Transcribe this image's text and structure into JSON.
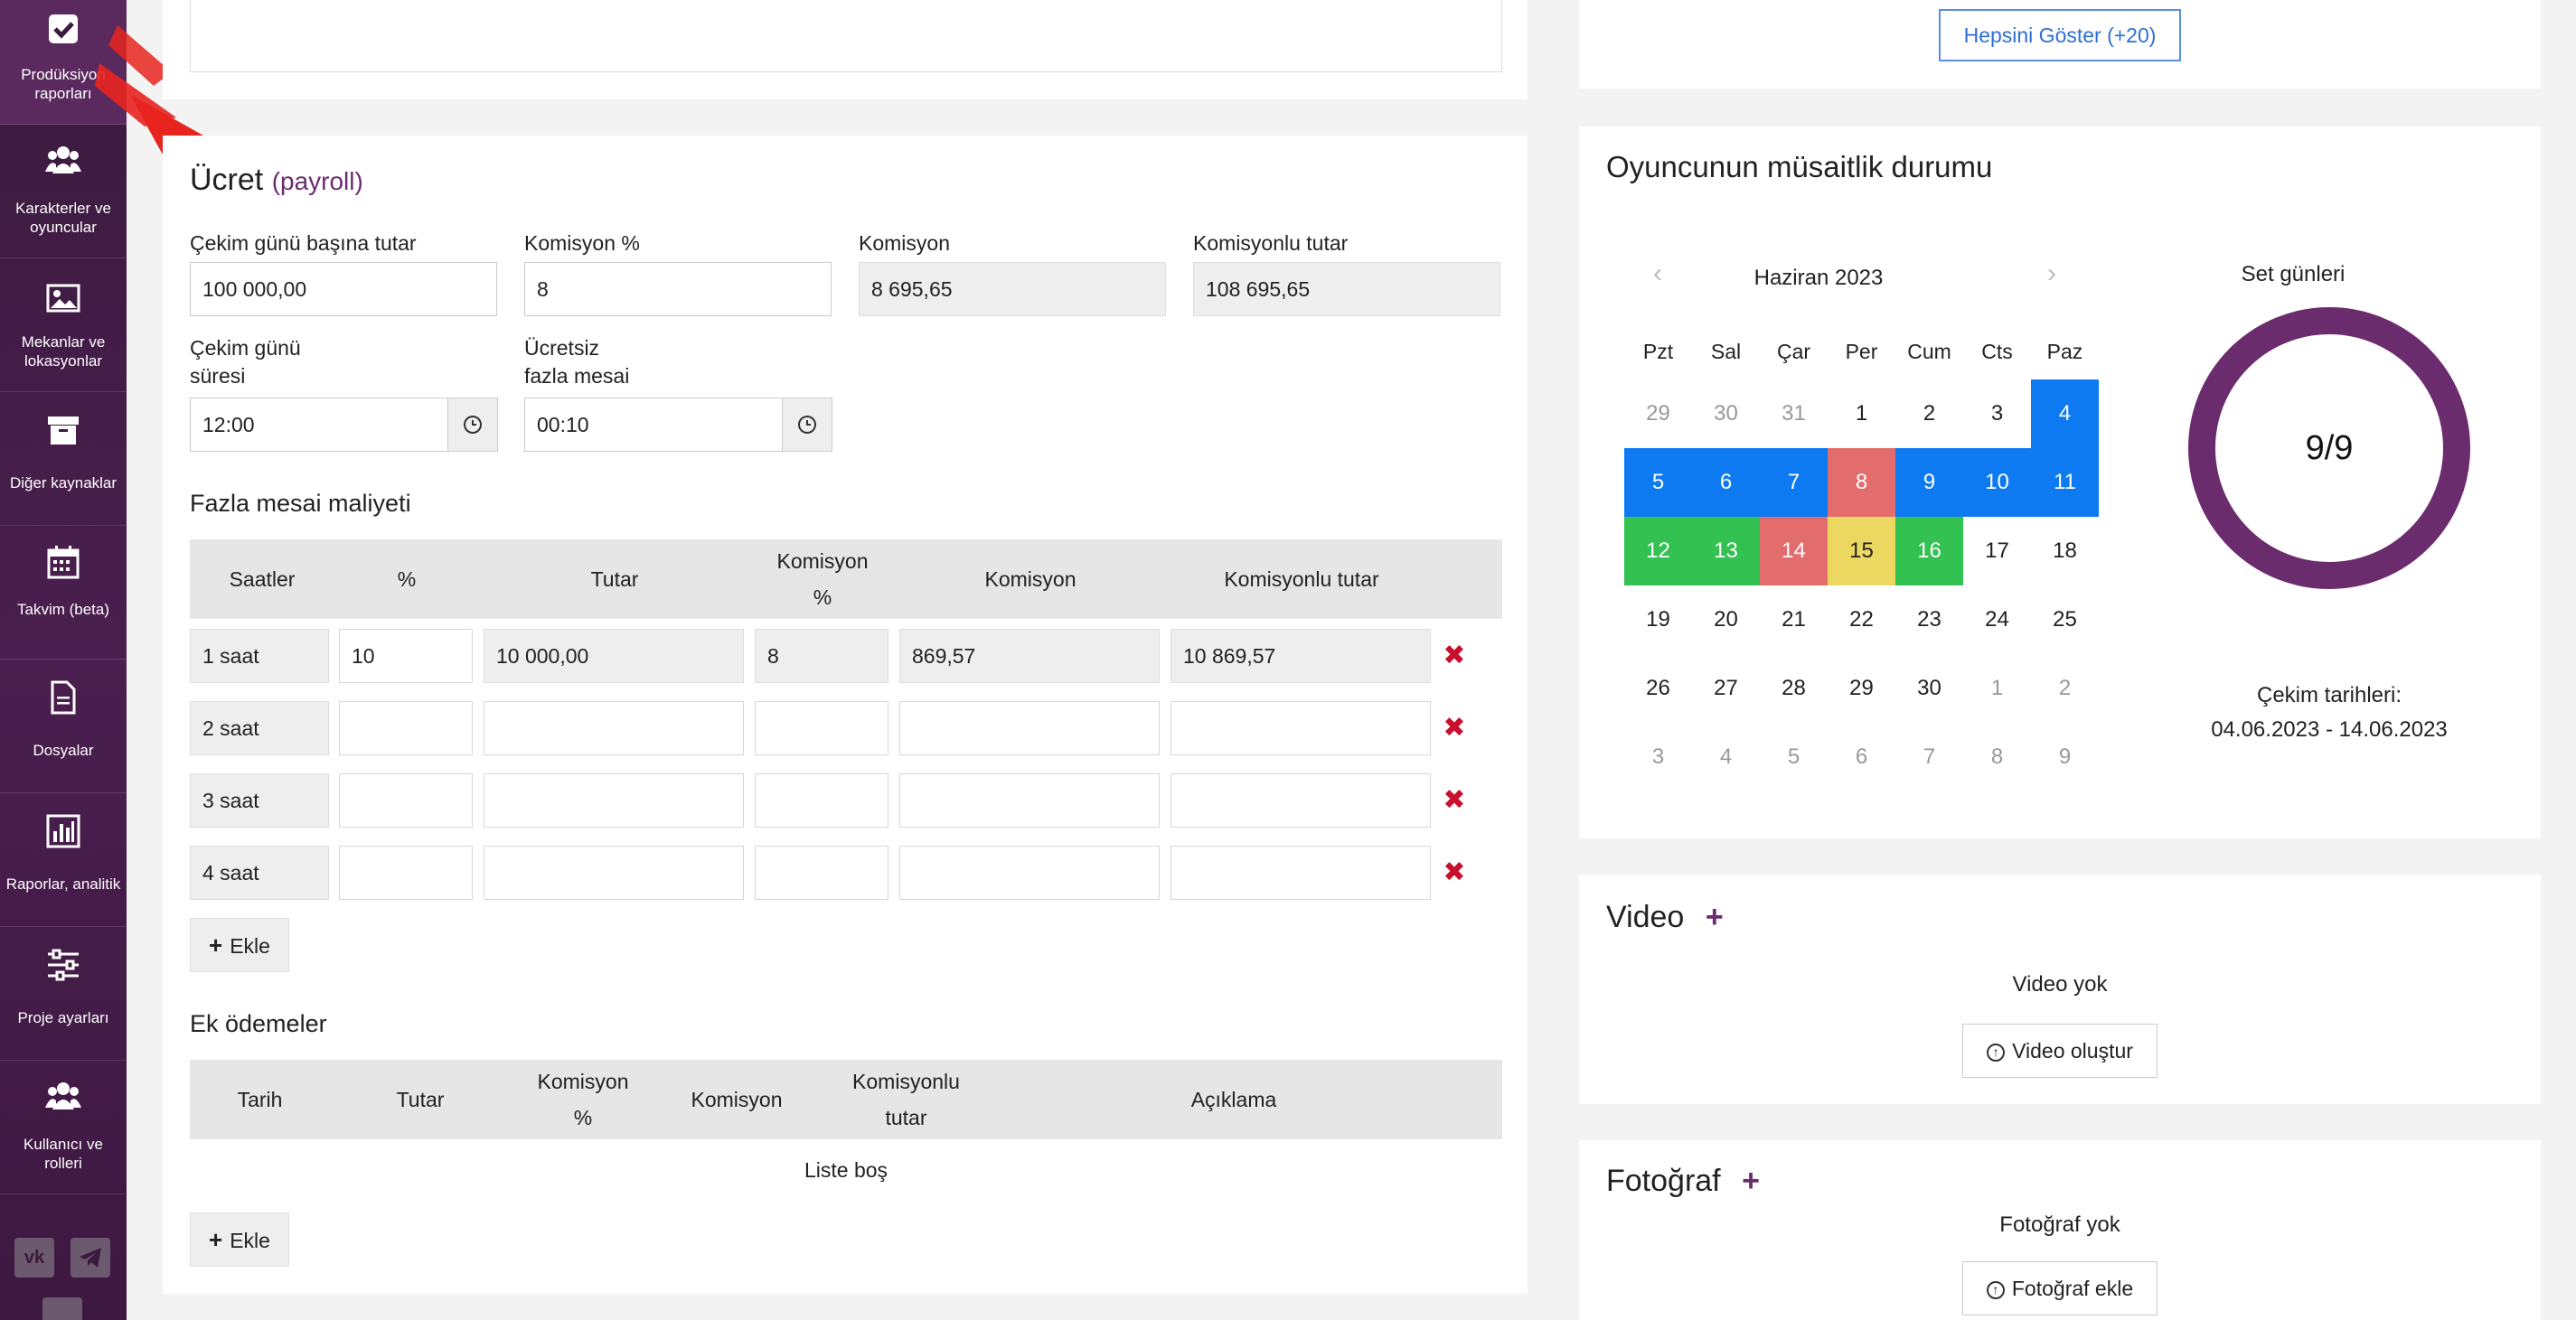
{
  "colors": {
    "sidebar": "#3a1a3d",
    "accent_purple": "#6b2c6e",
    "blue": "#0d7af2",
    "green": "#33c151",
    "red": "#e36d6d",
    "yellow": "#ecd861",
    "delete_red": "#c8102e"
  },
  "sidebar": {
    "items": [
      {
        "label": "Prodüksiyon raporları",
        "icon": "checkbox-icon"
      },
      {
        "label": "Karakterler ve oyuncular",
        "icon": "users-icon"
      },
      {
        "label": "Mekanlar ve lokasyonlar",
        "icon": "image-icon"
      },
      {
        "label": "Diğer kaynaklar",
        "icon": "archive-icon"
      },
      {
        "label": "Takvim (beta)",
        "icon": "calendar-icon"
      },
      {
        "label": "Dosyalar",
        "icon": "document-icon"
      },
      {
        "label": "Raporlar, analitik",
        "icon": "chart-icon"
      },
      {
        "label": "Proje ayarları",
        "icon": "sliders-icon"
      },
      {
        "label": "Kullanıcı ve rolleri",
        "icon": "users-icon"
      }
    ],
    "social": [
      "vk-icon",
      "telegram-icon",
      "youtube-icon"
    ]
  },
  "payroll": {
    "title": "Ücret",
    "title_sub": "(payroll)",
    "fields": {
      "day_rate_label": "Çekim günü başına tutar",
      "day_rate_value": "100 000,00",
      "commission_pct_label": "Komisyon %",
      "commission_pct_value": "8",
      "commission_label": "Komisyon",
      "commission_value": "8 695,65",
      "total_label": "Komisyonlu tutar",
      "total_value": "108 695,65",
      "duration_label_1": "Çekim günü",
      "duration_label_2": "süresi",
      "duration_value": "12:00",
      "free_ot_label_1": "Ücretsiz",
      "free_ot_label_2": "fazla mesai",
      "free_ot_value": "00:10"
    },
    "overtime": {
      "title": "Fazla mesai maliyeti",
      "headers": {
        "hours": "Saatler",
        "pct": "%",
        "amount": "Tutar",
        "comm_pct_1": "Komisyon",
        "comm_pct_2": "%",
        "commission": "Komisyon",
        "total": "Komisyonlu tutar"
      },
      "rows": [
        {
          "hours": "1 saat",
          "pct": "10",
          "amount": "10 000,00",
          "comm_pct": "8",
          "commission": "869,57",
          "total": "10 869,57"
        },
        {
          "hours": "2 saat",
          "pct": "",
          "amount": "",
          "comm_pct": "",
          "commission": "",
          "total": ""
        },
        {
          "hours": "3 saat",
          "pct": "",
          "amount": "",
          "comm_pct": "",
          "commission": "",
          "total": ""
        },
        {
          "hours": "4 saat",
          "pct": "",
          "amount": "",
          "comm_pct": "",
          "commission": "",
          "total": ""
        }
      ],
      "add_label": "Ekle"
    },
    "extra": {
      "title": "Ek ödemeler",
      "headers": {
        "date": "Tarih",
        "amount": "Tutar",
        "comm_pct_1": "Komisyon",
        "comm_pct_2": "%",
        "commission": "Komisyon",
        "total_1": "Komisyonlu",
        "total_2": "tutar",
        "desc": "Açıklama"
      },
      "empty": "Liste boş",
      "add_label": "Ekle"
    }
  },
  "show_all_label": "Hepsini Göster (+20)",
  "availability": {
    "title": "Oyuncunun müsaitlik durumu",
    "month": "Haziran 2023",
    "day_names": [
      "Pzt",
      "Sal",
      "Çar",
      "Per",
      "Cum",
      "Cts",
      "Paz"
    ],
    "weeks": [
      [
        {
          "d": "29",
          "s": "muted"
        },
        {
          "d": "30",
          "s": "muted"
        },
        {
          "d": "31",
          "s": "muted"
        },
        {
          "d": "1",
          "s": ""
        },
        {
          "d": "2",
          "s": ""
        },
        {
          "d": "3",
          "s": ""
        },
        {
          "d": "4",
          "s": "blue"
        }
      ],
      [
        {
          "d": "5",
          "s": "blue"
        },
        {
          "d": "6",
          "s": "blue"
        },
        {
          "d": "7",
          "s": "blue"
        },
        {
          "d": "8",
          "s": "red"
        },
        {
          "d": "9",
          "s": "blue"
        },
        {
          "d": "10",
          "s": "blue"
        },
        {
          "d": "11",
          "s": "blue"
        }
      ],
      [
        {
          "d": "12",
          "s": "green"
        },
        {
          "d": "13",
          "s": "green"
        },
        {
          "d": "14",
          "s": "red"
        },
        {
          "d": "15",
          "s": "yellow"
        },
        {
          "d": "16",
          "s": "green"
        },
        {
          "d": "17",
          "s": ""
        },
        {
          "d": "18",
          "s": ""
        }
      ],
      [
        {
          "d": "19",
          "s": ""
        },
        {
          "d": "20",
          "s": ""
        },
        {
          "d": "21",
          "s": ""
        },
        {
          "d": "22",
          "s": ""
        },
        {
          "d": "23",
          "s": ""
        },
        {
          "d": "24",
          "s": ""
        },
        {
          "d": "25",
          "s": ""
        }
      ],
      [
        {
          "d": "26",
          "s": ""
        },
        {
          "d": "27",
          "s": ""
        },
        {
          "d": "28",
          "s": ""
        },
        {
          "d": "29",
          "s": ""
        },
        {
          "d": "30",
          "s": ""
        },
        {
          "d": "1",
          "s": "muted"
        },
        {
          "d": "2",
          "s": "muted"
        }
      ],
      [
        {
          "d": "3",
          "s": "muted"
        },
        {
          "d": "4",
          "s": "muted"
        },
        {
          "d": "5",
          "s": "muted"
        },
        {
          "d": "6",
          "s": "muted"
        },
        {
          "d": "7",
          "s": "muted"
        },
        {
          "d": "8",
          "s": "muted"
        },
        {
          "d": "9",
          "s": "muted"
        }
      ]
    ],
    "set_days_label": "Set günleri",
    "set_days_value": "9/9",
    "dates_label": "Çekim tarihleri:",
    "dates_value": "04.06.2023 - 14.06.2023"
  },
  "video": {
    "title": "Video",
    "empty": "Video yok",
    "button": "Video oluştur"
  },
  "photo": {
    "title": "Fotoğraf",
    "empty": "Fotoğraf yok",
    "button": "Fotoğraf ekle"
  }
}
